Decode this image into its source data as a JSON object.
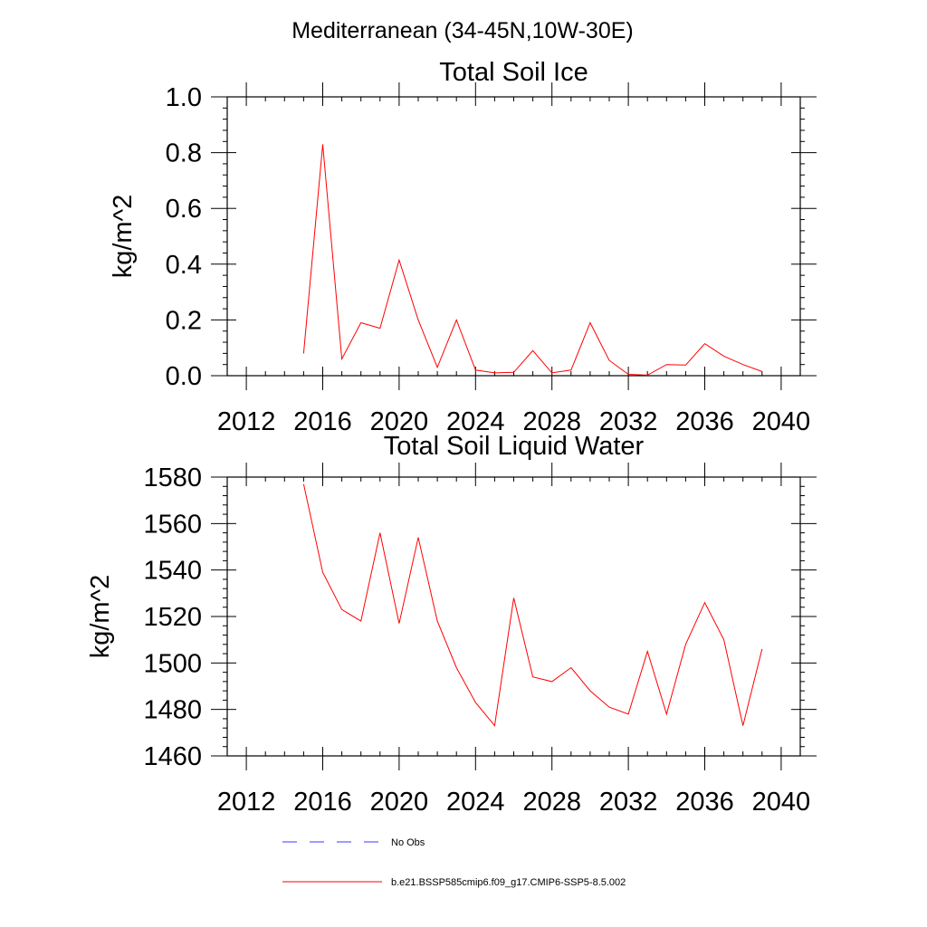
{
  "figure": {
    "title": "Mediterranean (34-45N,10W-30E)"
  },
  "colors": {
    "model_line": "#ff0000",
    "obs_line": "#3b3bff",
    "axis": "#000000"
  },
  "legend": {
    "placement": "bottom",
    "entries": [
      {
        "label": "No Obs",
        "style": "dashed",
        "color": "#3b3bff"
      },
      {
        "label": "b.e21.BSSP585cmip6.f09_g17.CMIP6-SSP5-8.5.002",
        "style": "solid",
        "color": "#ff0000"
      }
    ]
  },
  "chart_data": [
    {
      "type": "line",
      "title": "Total Soil Ice",
      "xlabel": "",
      "ylabel": "kg/m^2",
      "xlim": [
        2011,
        2041
      ],
      "ylim": [
        0,
        1.0
      ],
      "xticks": [
        2012,
        2016,
        2020,
        2024,
        2028,
        2032,
        2036,
        2040
      ],
      "yticks": [
        0.0,
        0.2,
        0.4,
        0.6,
        0.8,
        1.0
      ],
      "yticklabels": [
        "0.0",
        "0.2",
        "0.4",
        "0.6",
        "0.8",
        "1.0"
      ],
      "grid": false,
      "x": [
        2015,
        2016,
        2017,
        2018,
        2019,
        2020,
        2021,
        2022,
        2023,
        2024,
        2025,
        2026,
        2027,
        2028,
        2029,
        2030,
        2031,
        2032,
        2033,
        2034,
        2035,
        2036,
        2037,
        2038,
        2039
      ],
      "series": [
        {
          "name": "b.e21.BSSP585cmip6.f09_g17.CMIP6-SSP5-8.5.002",
          "color": "#ff0000",
          "values": [
            0.08,
            0.83,
            0.06,
            0.19,
            0.17,
            0.415,
            0.2,
            0.03,
            0.2,
            0.02,
            0.01,
            0.012,
            0.09,
            0.01,
            0.02,
            0.19,
            0.055,
            0.005,
            0.002,
            0.04,
            0.038,
            0.115,
            0.07,
            0.04,
            0.015
          ]
        }
      ]
    },
    {
      "type": "line",
      "title": "Total Soil Liquid Water",
      "xlabel": "",
      "ylabel": "kg/m^2",
      "xlim": [
        2011,
        2041
      ],
      "ylim": [
        1460,
        1580
      ],
      "xticks": [
        2012,
        2016,
        2020,
        2024,
        2028,
        2032,
        2036,
        2040
      ],
      "yticks": [
        1460,
        1480,
        1500,
        1520,
        1540,
        1560,
        1580
      ],
      "yticklabels": [
        "1460",
        "1480",
        "1500",
        "1520",
        "1540",
        "1560",
        "1580"
      ],
      "grid": false,
      "x": [
        2015,
        2016,
        2017,
        2018,
        2019,
        2020,
        2021,
        2022,
        2023,
        2024,
        2025,
        2026,
        2027,
        2028,
        2029,
        2030,
        2031,
        2032,
        2033,
        2034,
        2035,
        2036,
        2037,
        2038,
        2039
      ],
      "series": [
        {
          "name": "b.e21.BSSP585cmip6.f09_g17.CMIP6-SSP5-8.5.002",
          "color": "#ff0000",
          "values": [
            1577,
            1539,
            1523,
            1518,
            1556,
            1517,
            1554,
            1518,
            1498,
            1483,
            1473,
            1528,
            1494,
            1492,
            1498,
            1488,
            1481,
            1478,
            1505,
            1478,
            1508,
            1526,
            1510,
            1473,
            1506
          ]
        }
      ]
    }
  ]
}
